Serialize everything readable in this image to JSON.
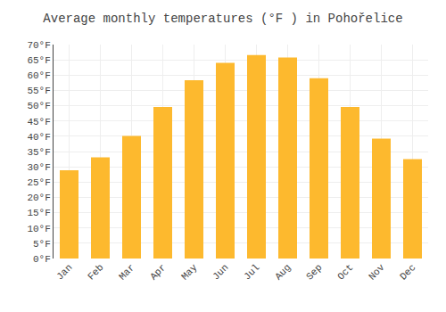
{
  "chart_data": {
    "type": "bar",
    "title": "Average monthly temperatures (°F ) in Pohořelice",
    "categories": [
      "Jan",
      "Feb",
      "Mar",
      "Apr",
      "May",
      "Jun",
      "Jul",
      "Aug",
      "Sep",
      "Oct",
      "Nov",
      "Dec"
    ],
    "values": [
      28.9,
      33.1,
      40.1,
      49.6,
      58.3,
      64.0,
      66.6,
      65.8,
      59.0,
      49.6,
      39.2,
      32.5
    ],
    "color": "#FDB92E",
    "ylim": [
      0,
      70
    ],
    "yticks": [
      {
        "value": 0,
        "label": "0°F"
      },
      {
        "value": 5,
        "label": "5°F"
      },
      {
        "value": 10,
        "label": "10°F"
      },
      {
        "value": 15,
        "label": "15°F"
      },
      {
        "value": 20,
        "label": "20°F"
      },
      {
        "value": 25,
        "label": "25°F"
      },
      {
        "value": 30,
        "label": "30°F"
      },
      {
        "value": 35,
        "label": "35°F"
      },
      {
        "value": 40,
        "label": "40°F"
      },
      {
        "value": 45,
        "label": "45°F"
      },
      {
        "value": 50,
        "label": "50°F"
      },
      {
        "value": 55,
        "label": "55°F"
      },
      {
        "value": 60,
        "label": "60°F"
      },
      {
        "value": 65,
        "label": "65°F"
      },
      {
        "value": 70,
        "label": "70°F"
      }
    ],
    "grid": true
  }
}
